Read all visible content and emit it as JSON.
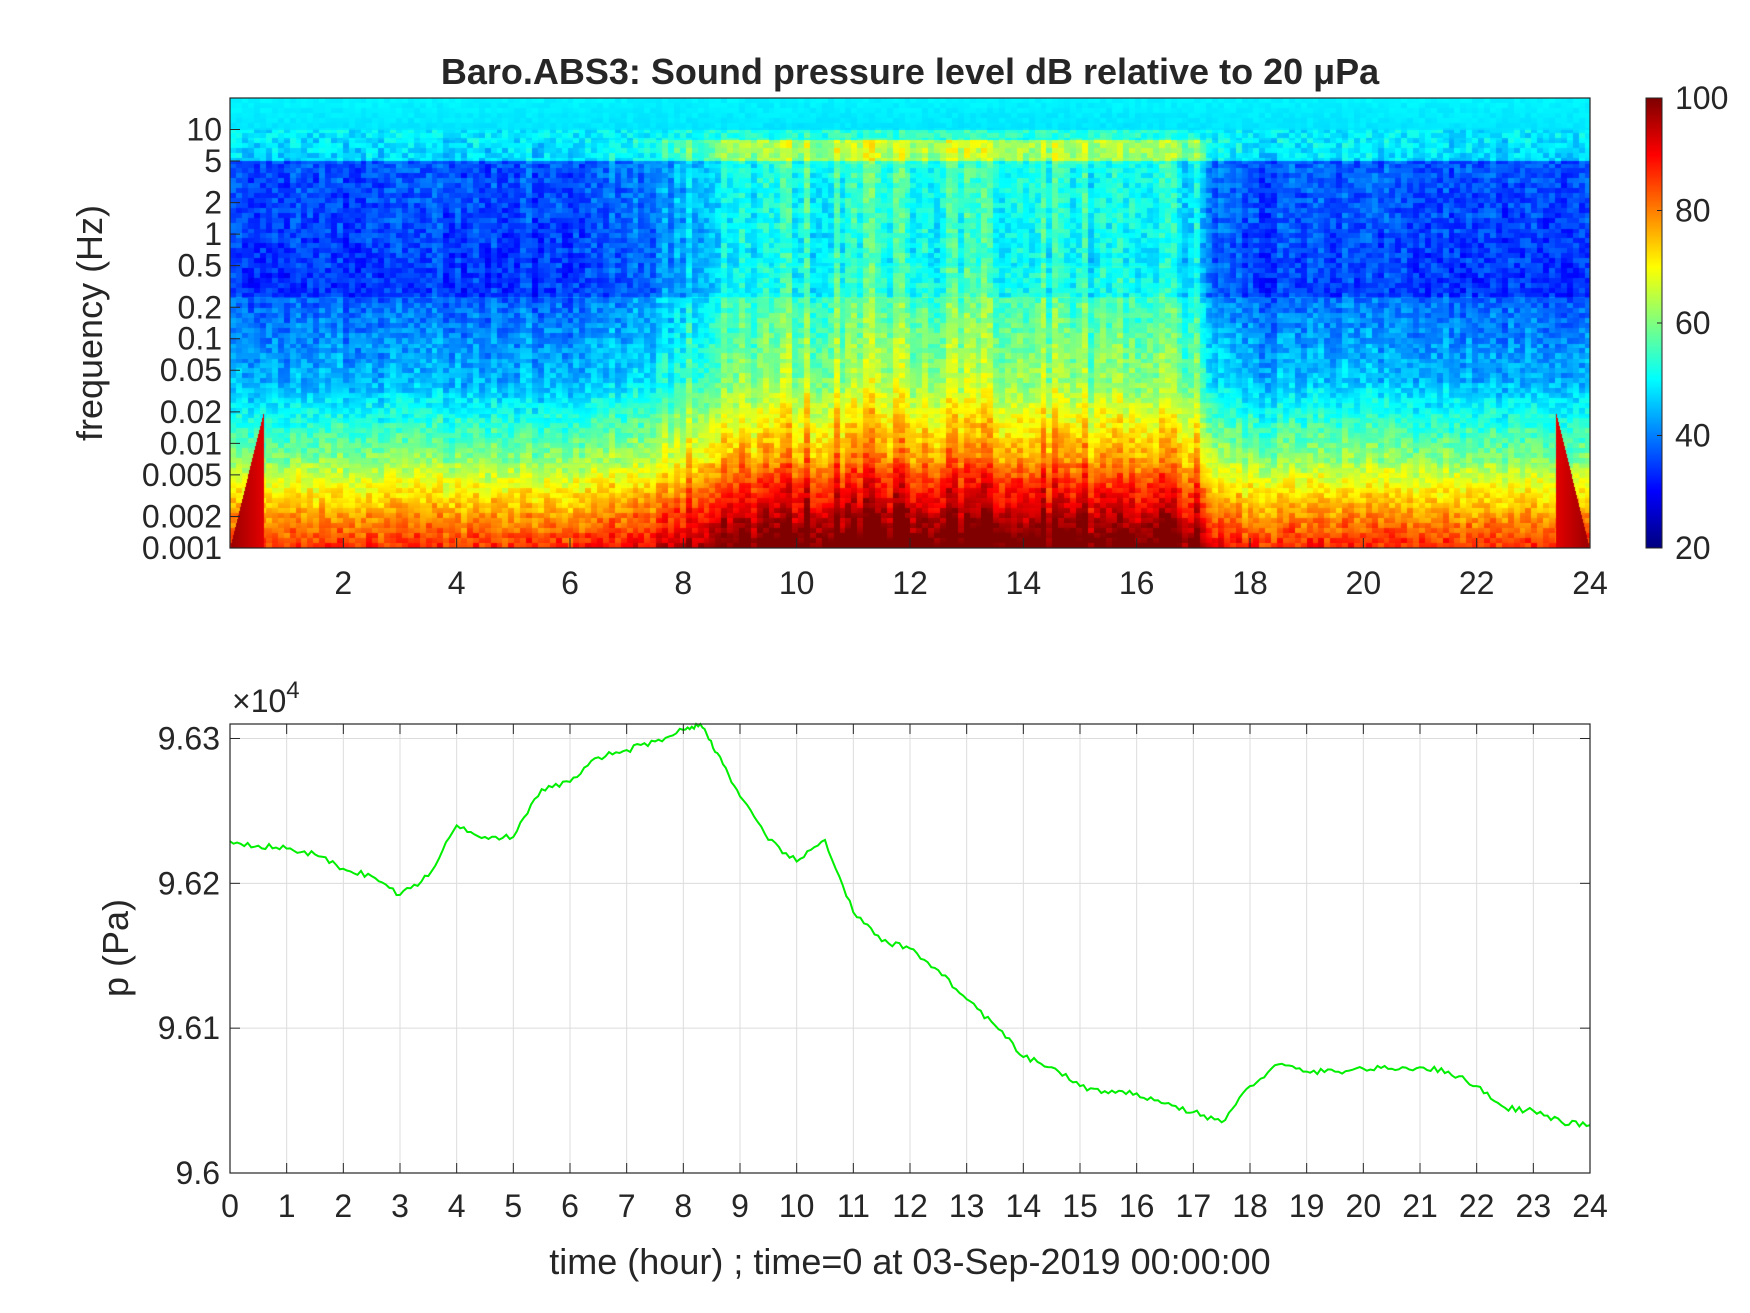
{
  "chart_data": [
    {
      "type": "heatmap",
      "title": "Baro.ABS3: Sound pressure level dB relative to 20 μPa",
      "xlabel": "",
      "ylabel": "frequency (Hz)",
      "x_ticks": [
        2,
        4,
        6,
        8,
        10,
        12,
        14,
        16,
        18,
        20,
        22,
        24
      ],
      "x_tick_labels": [
        "2",
        "4",
        "6",
        "8",
        "10",
        "12",
        "14",
        "16",
        "18",
        "20",
        "22",
        "24"
      ],
      "xlim": [
        0,
        24
      ],
      "y_scale": "log",
      "ylim": [
        0.001,
        20
      ],
      "y_ticks": [
        0.001,
        0.002,
        0.005,
        0.01,
        0.02,
        0.05,
        0.1,
        0.2,
        0.5,
        1,
        2,
        5,
        10
      ],
      "y_tick_labels": [
        "0.001",
        "0.002",
        "0.005",
        "0.01",
        "0.02",
        "0.05",
        "0.1",
        "0.2",
        "0.5",
        "1",
        "2",
        "5",
        "10"
      ],
      "colormap": "jet",
      "colorbar": {
        "range": [
          20,
          100
        ],
        "ticks": [
          20,
          40,
          60,
          80,
          100
        ],
        "tick_labels": [
          "20",
          "40",
          "60",
          "80",
          "100"
        ]
      },
      "activity_profile": {
        "hours": [
          0,
          2,
          4,
          6,
          7,
          8,
          9,
          10,
          11,
          12,
          13,
          14,
          15,
          16,
          17,
          17.5,
          18,
          19,
          20,
          21,
          22,
          23,
          24
        ],
        "level_offset_db": [
          0,
          0,
          0,
          0,
          3,
          8,
          14,
          18,
          20,
          20,
          20,
          19,
          18,
          17,
          14,
          4,
          0,
          1,
          1,
          1,
          0,
          0,
          0
        ]
      }
    },
    {
      "type": "line",
      "title": "",
      "xlabel": "time (hour) ; time=0 at 03-Sep-2019 00:00:00",
      "ylabel": "p (Pa)",
      "y_multiplier_label": "×10",
      "y_multiplier_exponent": "4",
      "xlim": [
        0,
        24
      ],
      "ylim": [
        96000,
        96310
      ],
      "x_ticks": [
        0,
        1,
        2,
        3,
        4,
        5,
        6,
        7,
        8,
        9,
        10,
        11,
        12,
        13,
        14,
        15,
        16,
        17,
        18,
        19,
        20,
        21,
        22,
        23,
        24
      ],
      "x_tick_labels": [
        "0",
        "1",
        "2",
        "3",
        "4",
        "5",
        "6",
        "7",
        "8",
        "9",
        "10",
        "11",
        "12",
        "13",
        "14",
        "15",
        "16",
        "17",
        "18",
        "19",
        "20",
        "21",
        "22",
        "23",
        "24"
      ],
      "y_ticks": [
        96000,
        96100,
        96200,
        96300
      ],
      "y_tick_labels": [
        "9.6",
        "9.61",
        "9.62",
        "9.63"
      ],
      "grid": true,
      "line_color": "#00ee00",
      "x": [
        0,
        0.5,
        1,
        1.5,
        2,
        2.5,
        3,
        3.5,
        4,
        4.5,
        5,
        5.5,
        6,
        6.5,
        7,
        7.5,
        8,
        8.3,
        8.6,
        9,
        9.5,
        10,
        10.5,
        11,
        11.5,
        12,
        12.5,
        13,
        13.5,
        14,
        14.5,
        15,
        15.5,
        16,
        16.5,
        17,
        17.5,
        18,
        18.5,
        19,
        19.5,
        20,
        20.5,
        21,
        21.5,
        22,
        22.5,
        23,
        23.5,
        24
      ],
      "y": [
        96229,
        96226,
        96224,
        96220,
        96210,
        96205,
        96192,
        96205,
        96240,
        96232,
        96232,
        96265,
        96270,
        96287,
        96292,
        96298,
        96306,
        96310,
        96290,
        96260,
        96230,
        96215,
        96230,
        96180,
        96160,
        96155,
        96140,
        96120,
        96102,
        96080,
        96073,
        96060,
        96055,
        96055,
        96048,
        96042,
        96035,
        96060,
        96075,
        96070,
        96070,
        96072,
        96072,
        96073,
        96070,
        96060,
        96045,
        96043,
        96035,
        96033
      ]
    }
  ]
}
